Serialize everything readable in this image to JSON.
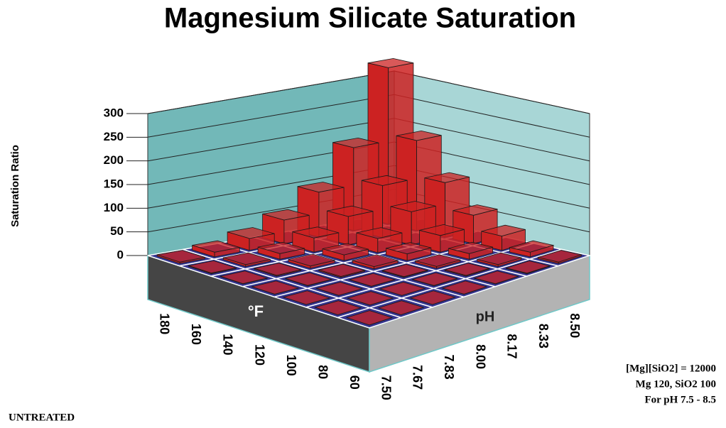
{
  "chart_data": {
    "type": "bar3d",
    "title": "Magnesium Silicate Saturation",
    "y_label": "Saturation Ratio",
    "x_label": "°F",
    "z_label": "pH",
    "ylim": [
      0,
      300
    ],
    "yticks": [
      0,
      50,
      100,
      150,
      200,
      250,
      300
    ],
    "categories": [
      "7.50",
      "7.67",
      "7.83",
      "8.00",
      "8.17",
      "8.33",
      "8.50"
    ],
    "color": "#cc2222",
    "floor_color": "#35358f",
    "wall_colors": [
      "#72b8b8",
      "#a8d6d6"
    ],
    "series": [
      {
        "name": "180",
        "values": [
          3,
          10,
          25,
          50,
          95,
          175,
          330
        ]
      },
      {
        "name": "160",
        "values": [
          1.5,
          4,
          12,
          30,
          60,
          110,
          190
        ]
      },
      {
        "name": "140",
        "values": [
          0.6,
          1.8,
          5,
          12,
          30,
          70,
          115
        ]
      },
      {
        "name": "120",
        "values": [
          0.3,
          0.7,
          2,
          5,
          14,
          35,
          60
        ]
      },
      {
        "name": "100",
        "values": [
          0.1,
          0.3,
          0.6,
          1.5,
          4,
          12,
          30
        ]
      },
      {
        "name": "80",
        "values": [
          0.05,
          0.1,
          0.2,
          0.6,
          1.6,
          4,
          10
        ]
      },
      {
        "name": "60",
        "values": [
          0.02,
          0.04,
          0.1,
          0.2,
          0.5,
          1.2,
          3
        ]
      }
    ],
    "annotations": [
      "[Mg][SiO2] = 12000",
      "Mg 120,  SiO2 100",
      "For pH  7.5 - 8.5",
      "UNTREATED"
    ]
  }
}
